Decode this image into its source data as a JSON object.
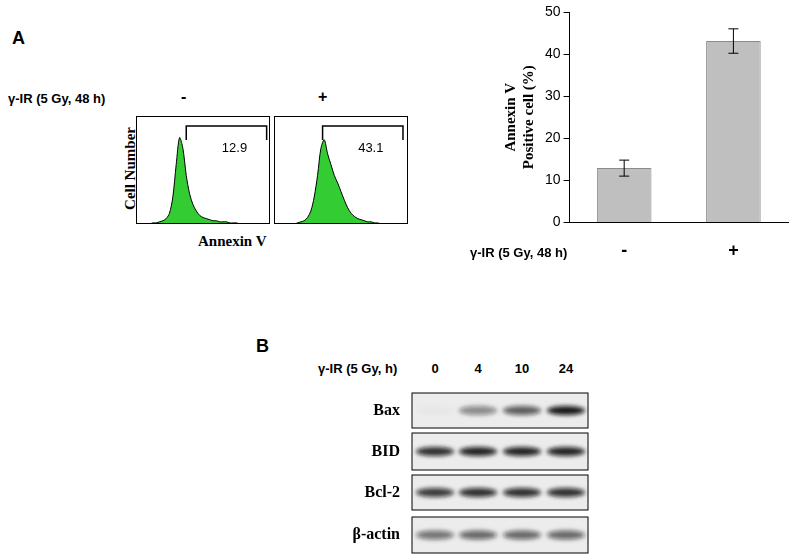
{
  "panel_labels": [
    "A",
    "B"
  ],
  "histogram_row_label": "γ-IR (5 Gy, 48 h)",
  "histogram_x_label": "Annexin V",
  "histogram_y_label": "Cell Number",
  "chart_data": [
    {
      "type": "line",
      "title": "-",
      "color": "#33cc33",
      "x": [
        0,
        1,
        2,
        3,
        4,
        5,
        6,
        7,
        8,
        9,
        10,
        11,
        12,
        13,
        14,
        15,
        16,
        17,
        18,
        19,
        20,
        21,
        22,
        23,
        24,
        25,
        26,
        27,
        28,
        29,
        30,
        31,
        32,
        33,
        34,
        35,
        36,
        37,
        38,
        39,
        40
      ],
      "values": [
        0,
        0,
        0,
        0,
        0,
        1,
        1,
        2,
        3,
        5,
        10,
        25,
        55,
        80,
        70,
        45,
        28,
        18,
        12,
        8,
        6,
        5,
        4,
        3,
        3,
        2,
        2,
        2,
        1,
        1,
        1,
        0,
        0,
        0,
        0,
        0,
        0,
        0,
        0,
        0,
        0
      ],
      "xlim": [
        0,
        40
      ],
      "ylim": [
        0,
        100
      ],
      "tick_labels": false,
      "gate": {
        "range": [
          15,
          39
        ],
        "value": 12.9
      }
    },
    {
      "type": "line",
      "title": "+",
      "color": "#33cc33",
      "x": [
        0,
        1,
        2,
        3,
        4,
        5,
        6,
        7,
        8,
        9,
        10,
        11,
        12,
        13,
        14,
        15,
        16,
        17,
        18,
        19,
        20,
        21,
        22,
        23,
        24,
        25,
        26,
        27,
        28,
        29,
        30,
        31,
        32,
        33,
        34,
        35,
        36,
        37,
        38,
        39,
        40
      ],
      "values": [
        0,
        0,
        0,
        0,
        0,
        0,
        0,
        1,
        2,
        3,
        6,
        12,
        25,
        45,
        70,
        78,
        65,
        55,
        45,
        38,
        30,
        22,
        15,
        10,
        7,
        5,
        4,
        3,
        2,
        2,
        1,
        1,
        0,
        0,
        0,
        0,
        0,
        0,
        0,
        0,
        0
      ],
      "xlim": [
        0,
        40
      ],
      "ylim": [
        0,
        100
      ],
      "tick_labels": false,
      "gate": {
        "range": [
          14.5,
          38.5
        ],
        "value": 43.1
      }
    },
    {
      "type": "bar",
      "categories": [
        "-",
        "+"
      ],
      "values": [
        12.9,
        43.1
      ],
      "errors": [
        1.9,
        2.9
      ],
      "color": "#bfbfbf",
      "ylim": [
        0,
        50
      ],
      "yticks": [
        0,
        10,
        20,
        30,
        40,
        50
      ],
      "y_label": [
        "Annexin V",
        "Positive cell (%)"
      ],
      "x_label": "γ-IR (5 Gy, 48 h)",
      "grid": false
    }
  ],
  "blot": {
    "title": "γ-IR (5 Gy, h)",
    "lanes": [
      0,
      4,
      10,
      24
    ],
    "rows": [
      {
        "name": "Bax",
        "intensities": [
          0.02,
          0.45,
          0.65,
          0.95
        ]
      },
      {
        "name": "BID",
        "intensities": [
          0.85,
          0.9,
          0.9,
          0.9
        ]
      },
      {
        "name": "Bcl-2",
        "intensities": [
          0.8,
          0.85,
          0.85,
          0.85
        ]
      },
      {
        "name": "β-actin",
        "intensities": [
          0.55,
          0.6,
          0.6,
          0.6
        ]
      }
    ]
  }
}
